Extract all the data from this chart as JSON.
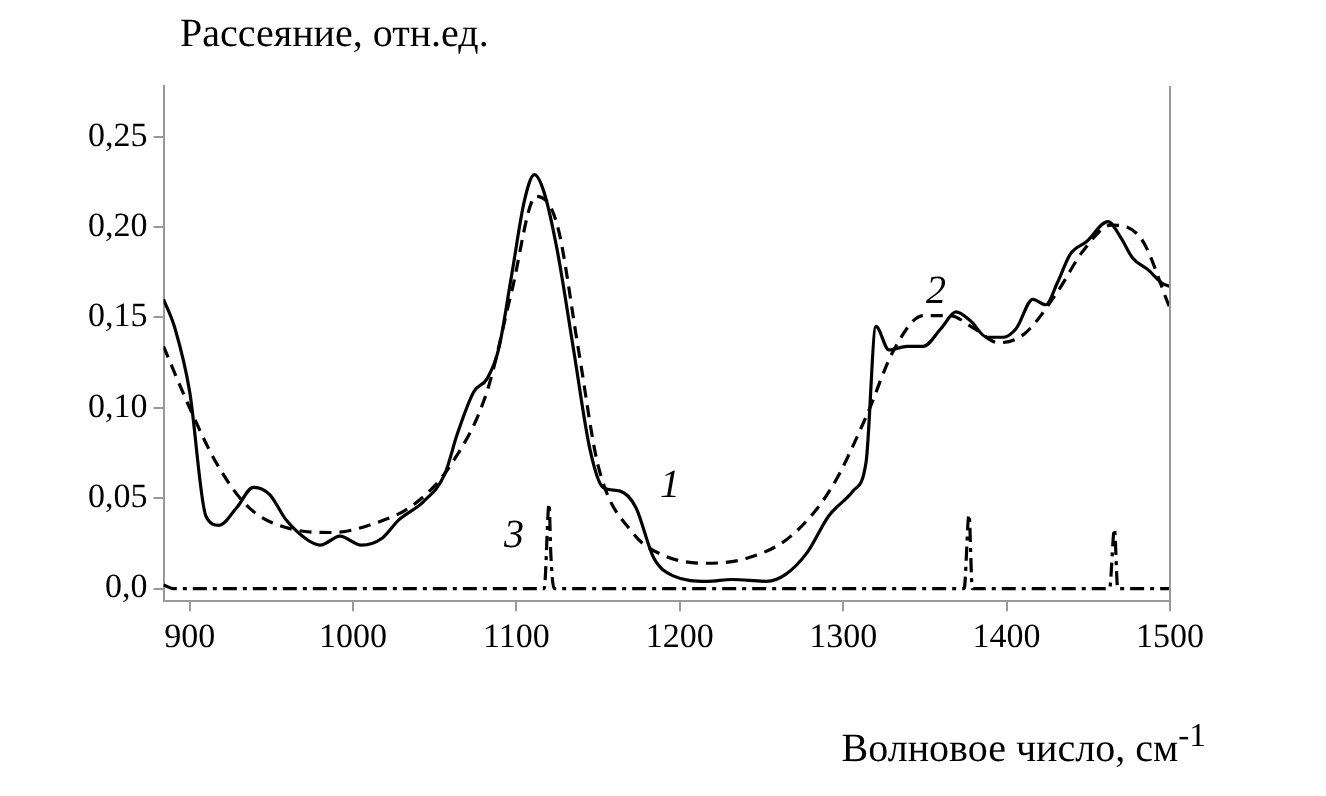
{
  "chart_data": {
    "type": "line",
    "ylabel": "Рассеяние, отн.ед.",
    "xlabel": "Волновое число, см$^{-1}$",
    "xlim": [
      884,
      1500
    ],
    "xticks": [
      900,
      1000,
      1100,
      1200,
      1300,
      1400,
      1500
    ],
    "ylim": [
      -0.007,
      0.278
    ],
    "yticks": [
      {
        "value": 0,
        "label": "0,0"
      },
      {
        "value": 0.05,
        "label": "0,05"
      },
      {
        "value": 0.1,
        "label": "0,10"
      },
      {
        "value": 0.15,
        "label": "0,15"
      },
      {
        "value": 0.2,
        "label": "0,20"
      },
      {
        "value": 0.25,
        "label": "0,25"
      }
    ],
    "grid": false,
    "legend": false,
    "marker": "none",
    "series": [
      {
        "name": "1",
        "color": "#000000",
        "line_style": "solid",
        "x": [
          884,
          891,
          900,
          910,
          918,
          929,
          939,
          949,
          959,
          972,
          980,
          992,
          1005,
          1018,
          1028,
          1043,
          1056,
          1064,
          1074,
          1082,
          1089,
          1097,
          1105,
          1111,
          1117,
          1125,
          1135,
          1145,
          1153,
          1163,
          1173,
          1184,
          1196,
          1217,
          1232,
          1253,
          1265,
          1278,
          1291,
          1306,
          1314,
          1320,
          1328,
          1339,
          1349,
          1360,
          1369,
          1378,
          1388,
          1398,
          1406,
          1416,
          1424,
          1431,
          1439,
          1449,
          1462,
          1470,
          1477,
          1487,
          1495,
          1500
        ],
        "values": [
          0.16,
          0.144,
          0.109,
          0.04,
          0.035,
          0.045,
          0.056,
          0.052,
          0.038,
          0.027,
          0.024,
          0.029,
          0.024,
          0.028,
          0.038,
          0.048,
          0.063,
          0.086,
          0.109,
          0.116,
          0.132,
          0.173,
          0.215,
          0.229,
          0.219,
          0.187,
          0.132,
          0.077,
          0.056,
          0.054,
          0.045,
          0.017,
          0.007,
          0.004,
          0.005,
          0.004,
          0.008,
          0.02,
          0.04,
          0.054,
          0.07,
          0.145,
          0.132,
          0.134,
          0.134,
          0.144,
          0.153,
          0.148,
          0.139,
          0.139,
          0.144,
          0.16,
          0.157,
          0.169,
          0.185,
          0.192,
          0.203,
          0.194,
          0.183,
          0.176,
          0.169,
          0.167
        ]
      },
      {
        "name": "2",
        "color": "#000000",
        "line_style": "dashed",
        "x": [
          884,
          900,
          916,
          936,
          962,
          987,
          1013,
          1038,
          1061,
          1082,
          1097,
          1112,
          1125,
          1138,
          1150,
          1171,
          1191,
          1217,
          1242,
          1268,
          1293,
          1314,
          1331,
          1349,
          1365,
          1380,
          1395,
          1411,
          1431,
          1447,
          1464,
          1482,
          1500
        ],
        "values": [
          0.134,
          0.1,
          0.07,
          0.045,
          0.033,
          0.031,
          0.036,
          0.047,
          0.07,
          0.109,
          0.164,
          0.217,
          0.201,
          0.132,
          0.068,
          0.031,
          0.018,
          0.014,
          0.017,
          0.029,
          0.056,
          0.095,
          0.132,
          0.151,
          0.151,
          0.144,
          0.136,
          0.141,
          0.164,
          0.187,
          0.201,
          0.194,
          0.155
        ]
      },
      {
        "name": "3",
        "color": "#000000",
        "line_style": "dashdot",
        "x": [
          884,
          890,
          1117,
          1120,
          1121,
          1123,
          1374,
          1377,
          1379,
          1463,
          1466,
          1468,
          1500
        ],
        "values": [
          0.002,
          0,
          0,
          0.047,
          0.02,
          0,
          0,
          0.041,
          0,
          0,
          0.033,
          0,
          0
        ]
      }
    ]
  }
}
